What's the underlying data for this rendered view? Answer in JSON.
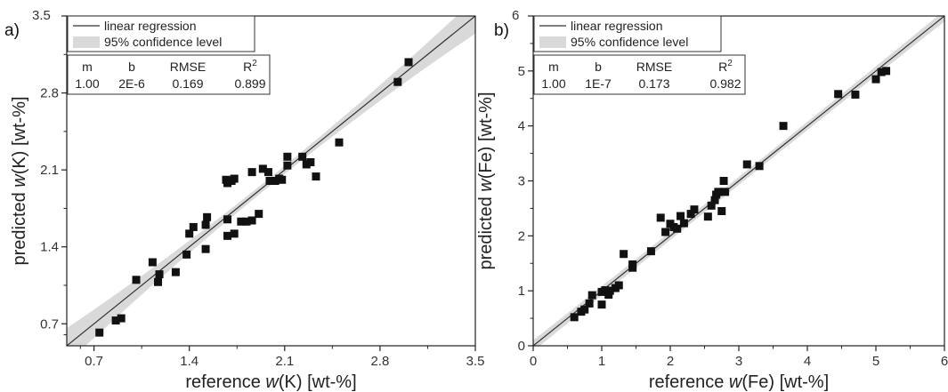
{
  "chart_data": [
    {
      "type": "scatter",
      "panel_label": "a)",
      "xlabel_parts": [
        "reference ",
        "w",
        "(K) [wt-%]"
      ],
      "ylabel_parts": [
        "predicted ",
        "w",
        "(K) [wt-%]"
      ],
      "xlim": [
        0.5,
        3.5
      ],
      "ylim": [
        0.5,
        3.5
      ],
      "xticks": [
        0.7,
        1.4,
        2.1,
        2.8,
        3.5
      ],
      "yticks": [
        0.7,
        1.4,
        2.1,
        2.8,
        3.5
      ],
      "tick_labels_x": [
        "0.7",
        "1.4",
        "2.1",
        "2.8",
        "3.5"
      ],
      "tick_labels_y": [
        "0.7",
        "1.4",
        "2.1",
        "2.8",
        "3.5"
      ],
      "legend": {
        "line": "linear regression",
        "band": "95% confidence level"
      },
      "stats": {
        "headers": [
          "m",
          "b",
          "RMSE",
          "R2"
        ],
        "values": [
          "1.00",
          "2E-6",
          "0.169",
          "0.899"
        ]
      },
      "regression": {
        "m": 1.0,
        "b": 2e-06
      },
      "band_halfwidth_end": 0.16,
      "points": [
        [
          0.74,
          0.62
        ],
        [
          0.86,
          0.73
        ],
        [
          0.9,
          0.75
        ],
        [
          1.01,
          1.1
        ],
        [
          1.13,
          1.26
        ],
        [
          1.17,
          1.08
        ],
        [
          1.18,
          1.15
        ],
        [
          1.3,
          1.17
        ],
        [
          1.38,
          1.33
        ],
        [
          1.4,
          1.52
        ],
        [
          1.43,
          1.58
        ],
        [
          1.52,
          1.38
        ],
        [
          1.52,
          1.6
        ],
        [
          1.53,
          1.67
        ],
        [
          1.68,
          1.5
        ],
        [
          1.68,
          1.65
        ],
        [
          1.73,
          1.52
        ],
        [
          1.78,
          1.63
        ],
        [
          1.82,
          1.63
        ],
        [
          1.86,
          1.64
        ],
        [
          1.86,
          2.08
        ],
        [
          1.91,
          1.7
        ],
        [
          1.67,
          2.01
        ],
        [
          1.68,
          1.98
        ],
        [
          1.71,
          2.0
        ],
        [
          1.73,
          2.02
        ],
        [
          1.94,
          2.11
        ],
        [
          1.98,
          2.08
        ],
        [
          1.99,
          2.0
        ],
        [
          2.03,
          2.0
        ],
        [
          2.06,
          2.02
        ],
        [
          2.08,
          2.01
        ],
        [
          2.12,
          2.14
        ],
        [
          2.12,
          2.22
        ],
        [
          2.23,
          2.22
        ],
        [
          2.26,
          2.15
        ],
        [
          2.29,
          2.17
        ],
        [
          2.33,
          2.04
        ],
        [
          2.5,
          2.35
        ],
        [
          2.93,
          2.9
        ],
        [
          3.01,
          3.08
        ]
      ]
    },
    {
      "type": "scatter",
      "panel_label": "b)",
      "xlabel_parts": [
        "reference ",
        "w",
        "(Fe) [wt-%]"
      ],
      "ylabel_parts": [
        "predicted ",
        "w",
        "(Fe) [wt-%]"
      ],
      "xlim": [
        0,
        6
      ],
      "ylim": [
        0,
        6
      ],
      "xticks": [
        0,
        1,
        2,
        3,
        4,
        5,
        6
      ],
      "yticks": [
        0,
        1,
        2,
        3,
        4,
        5,
        6
      ],
      "tick_labels_x": [
        "0",
        "1",
        "2",
        "3",
        "4",
        "5",
        "6"
      ],
      "tick_labels_y": [
        "0",
        "1",
        "2",
        "3",
        "4",
        "5",
        "6"
      ],
      "legend": {
        "line": "linear regression",
        "band": "95% confidence level"
      },
      "stats": {
        "headers": [
          "m",
          "b",
          "RMSE",
          "R2"
        ],
        "values": [
          "1.00",
          "1E-7",
          "0.173",
          "0.982"
        ]
      },
      "regression": {
        "m": 1.0,
        "b": 1e-07
      },
      "band_halfwidth_end": 0.1,
      "points": [
        [
          0.6,
          0.52
        ],
        [
          0.7,
          0.62
        ],
        [
          0.75,
          0.66
        ],
        [
          0.82,
          0.77
        ],
        [
          0.86,
          0.92
        ],
        [
          1.0,
          0.75
        ],
        [
          1.0,
          0.98
        ],
        [
          1.05,
          1.01
        ],
        [
          1.1,
          0.93
        ],
        [
          1.12,
          1.0
        ],
        [
          1.2,
          1.05
        ],
        [
          1.25,
          1.1
        ],
        [
          1.32,
          1.67
        ],
        [
          1.45,
          1.42
        ],
        [
          1.45,
          1.48
        ],
        [
          1.72,
          1.72
        ],
        [
          1.86,
          2.33
        ],
        [
          1.93,
          2.07
        ],
        [
          2.0,
          2.22
        ],
        [
          2.05,
          2.16
        ],
        [
          2.1,
          2.13
        ],
        [
          2.15,
          2.36
        ],
        [
          2.2,
          2.23
        ],
        [
          2.3,
          2.4
        ],
        [
          2.35,
          2.48
        ],
        [
          2.55,
          2.35
        ],
        [
          2.6,
          2.55
        ],
        [
          2.65,
          2.65
        ],
        [
          2.67,
          2.75
        ],
        [
          2.7,
          2.8
        ],
        [
          2.75,
          2.45
        ],
        [
          2.78,
          3.0
        ],
        [
          2.8,
          2.8
        ],
        [
          3.12,
          3.3
        ],
        [
          3.3,
          3.27
        ],
        [
          3.65,
          4.0
        ],
        [
          4.45,
          4.58
        ],
        [
          4.7,
          4.57
        ],
        [
          5.0,
          4.85
        ],
        [
          5.08,
          4.98
        ],
        [
          5.15,
          5.0
        ]
      ]
    }
  ]
}
